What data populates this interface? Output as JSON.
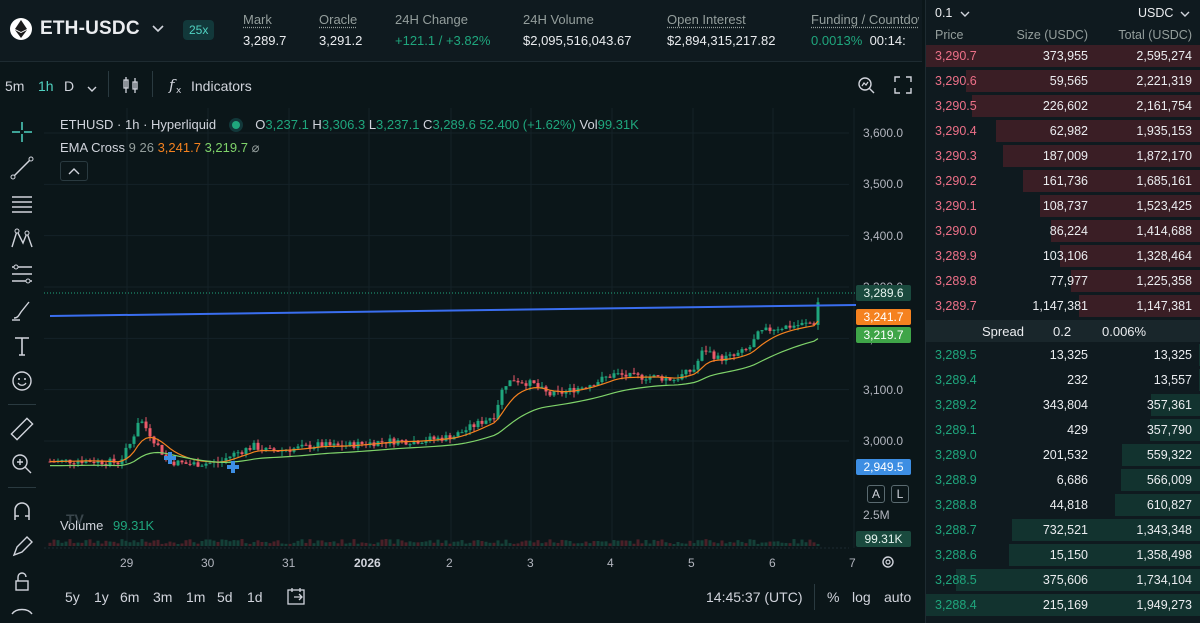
{
  "header": {
    "pair": "ETH-USDC",
    "leverage": "25x",
    "stats": [
      {
        "label": "Mark",
        "value": "3,289.7"
      },
      {
        "label": "Oracle",
        "value": "3,291.2"
      },
      {
        "label": "24H Change",
        "value": "+121.1 / +3.82%"
      },
      {
        "label": "24H Volume",
        "value": "$2,095,516,043.67"
      },
      {
        "label": "Open Interest",
        "value": "$2,894,315,217.82"
      },
      {
        "label": "Funding / Countdown",
        "value": "0.0013%",
        "value2": "00:14:"
      }
    ]
  },
  "toolbar": {
    "intervals": [
      "5m",
      "1h",
      "D"
    ],
    "active_interval": "1h",
    "indicators_label": "Indicators"
  },
  "chart": {
    "symbol_line": "ETHUSD · 1h · Hyperliquid",
    "ohlc": {
      "o": "3,237.1",
      "h": "3,306.3",
      "l": "3,237.1",
      "c": "3,289.6",
      "chg": "52.400 (+1.62%)",
      "vol": "99.31K"
    },
    "ohlc_labels": {
      "o": "O",
      "h": "H",
      "l": "L",
      "c": "C",
      "vol": "Vol"
    },
    "ema_label": "EMA Cross",
    "ema_params": "9 26",
    "ema_fast": "3,241.7",
    "ema_slow": "3,219.7",
    "volume_label": "Volume",
    "volume_value": "99.31K",
    "price_ticks": [
      "3,600.0",
      "3,500.0",
      "3,400.0",
      "3,300.0",
      "3,200.0",
      "3,100.0",
      "3,000.0"
    ],
    "x_ticks": [
      "29",
      "30",
      "31",
      "2026",
      "2",
      "3",
      "4",
      "5",
      "6",
      "7"
    ],
    "price_tags": [
      {
        "value": "3,289.6",
        "color": "#1a4a3e",
        "text_color": "#e7f5f0"
      },
      {
        "value": "3,241.7",
        "color": "#f5821f",
        "text_color": "#ffffff"
      },
      {
        "value": "3,219.7",
        "color": "#3fa548",
        "text_color": "#ffffff"
      },
      {
        "value": "2,949.5",
        "color": "#3d8ee3",
        "text_color": "#ffffff"
      }
    ],
    "volume_axis": "2.5M",
    "volume_tag": "99.31K",
    "a_label": "A",
    "l_label": "L",
    "colors": {
      "up": "#1fa67d",
      "down": "#ed5a6a",
      "ema_fast": "#f5821f",
      "ema_slow": "#7fd36a",
      "trendline": "#3a6ef0"
    }
  },
  "bottombar": {
    "ranges": [
      "5y",
      "1y",
      "6m",
      "3m",
      "1m",
      "5d",
      "1d"
    ],
    "time": "14:45:37 (UTC)",
    "percent": "%",
    "log": "log",
    "auto": "auto"
  },
  "orderbook": {
    "tick": "0.1",
    "currency": "USDC",
    "headers": [
      "Price",
      "Size (USDC)",
      "Total (USDC)"
    ],
    "asks": [
      {
        "price": "3,290.7",
        "size": "373,955",
        "total": "2,595,274",
        "depth": 1.0
      },
      {
        "price": "3,290.6",
        "size": "59,565",
        "total": "2,221,319",
        "depth": 0.856
      },
      {
        "price": "3,290.5",
        "size": "226,602",
        "total": "2,161,754",
        "depth": 0.833
      },
      {
        "price": "3,290.4",
        "size": "62,982",
        "total": "1,935,153",
        "depth": 0.746
      },
      {
        "price": "3,290.3",
        "size": "187,009",
        "total": "1,872,170",
        "depth": 0.721
      },
      {
        "price": "3,290.2",
        "size": "161,736",
        "total": "1,685,161",
        "depth": 0.649
      },
      {
        "price": "3,290.1",
        "size": "108,737",
        "total": "1,523,425",
        "depth": 0.587
      },
      {
        "price": "3,290.0",
        "size": "86,224",
        "total": "1,414,688",
        "depth": 0.545
      },
      {
        "price": "3,289.9",
        "size": "103,106",
        "total": "1,328,464",
        "depth": 0.512
      },
      {
        "price": "3,289.8",
        "size": "77,977",
        "total": "1,225,358",
        "depth": 0.472
      },
      {
        "price": "3,289.7",
        "size": "1,147,381",
        "total": "1,147,381",
        "depth": 0.442
      }
    ],
    "spread": {
      "label": "Spread",
      "value": "0.2",
      "pct": "0.006%"
    },
    "bids": [
      {
        "price": "3,289.5",
        "size": "13,325",
        "total": "13,325",
        "depth": 0.007
      },
      {
        "price": "3,289.4",
        "size": "232",
        "total": "13,557",
        "depth": 0.007
      },
      {
        "price": "3,289.2",
        "size": "343,804",
        "total": "357,361",
        "depth": 0.183
      },
      {
        "price": "3,289.1",
        "size": "429",
        "total": "357,790",
        "depth": 0.184
      },
      {
        "price": "3,289.0",
        "size": "201,532",
        "total": "559,322",
        "depth": 0.287
      },
      {
        "price": "3,288.9",
        "size": "6,686",
        "total": "566,009",
        "depth": 0.29
      },
      {
        "price": "3,288.8",
        "size": "44,818",
        "total": "610,827",
        "depth": 0.313
      },
      {
        "price": "3,288.7",
        "size": "732,521",
        "total": "1,343,348",
        "depth": 0.689
      },
      {
        "price": "3,288.6",
        "size": "15,150",
        "total": "1,358,498",
        "depth": 0.697
      },
      {
        "price": "3,288.5",
        "size": "375,606",
        "total": "1,734,104",
        "depth": 0.89
      },
      {
        "price": "3,288.4",
        "size": "215,169",
        "total": "1,949,273",
        "depth": 1.0
      }
    ]
  }
}
